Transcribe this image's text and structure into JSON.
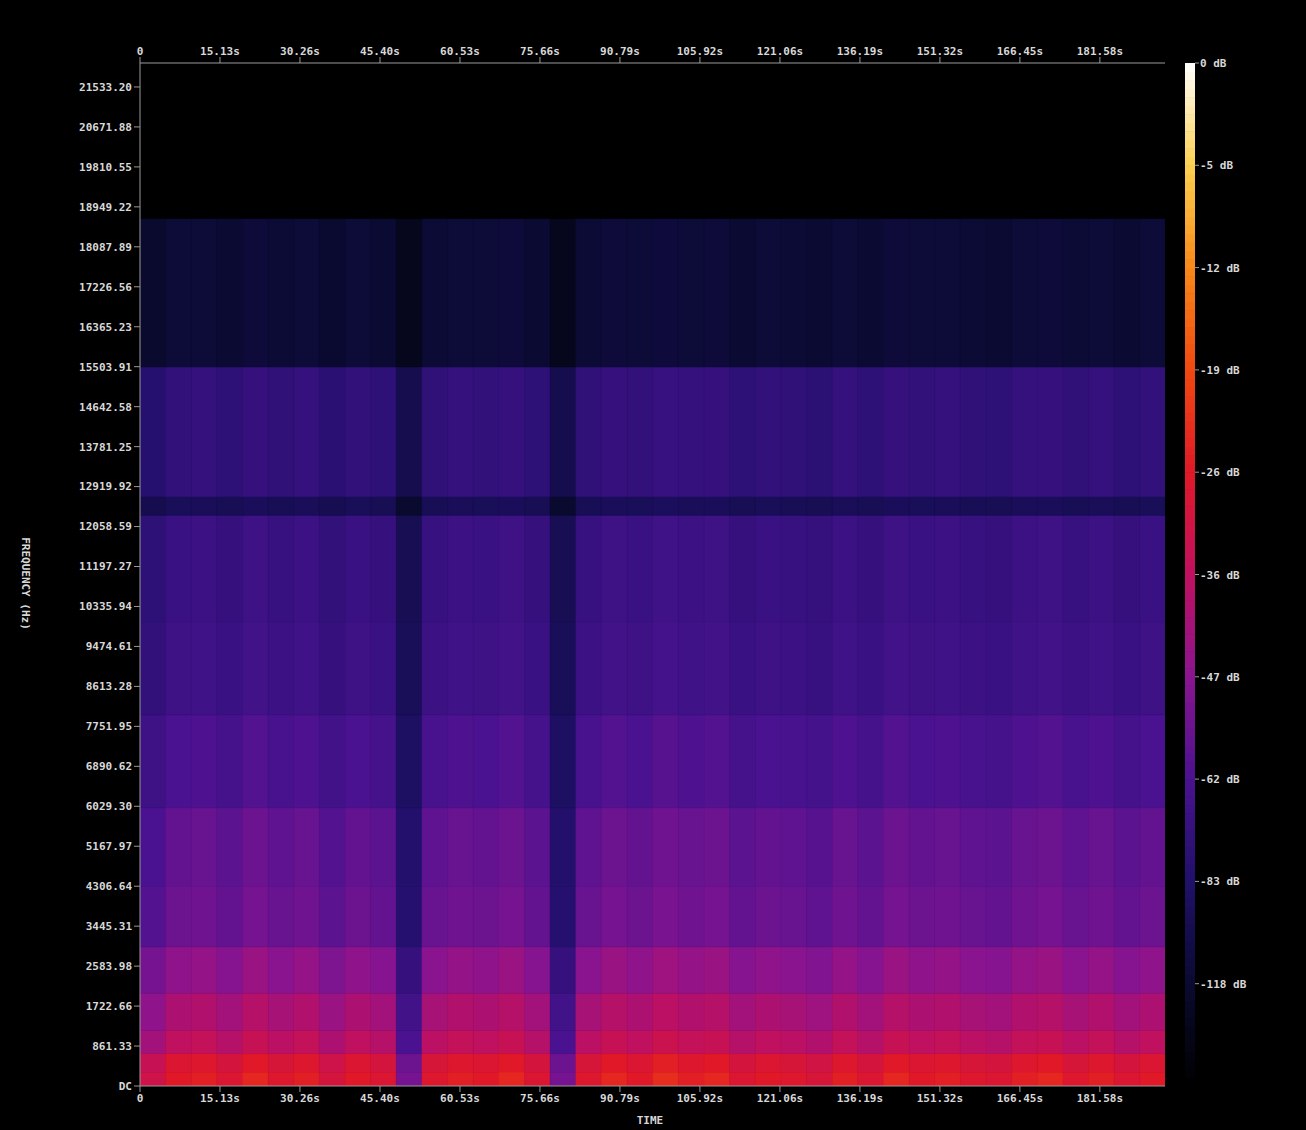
{
  "chart_data": {
    "type": "heatmap",
    "x_label": "TIME",
    "y_label": "FREQUENCY (Hz)",
    "grid": false,
    "xlim": [
      0,
      193.9
    ],
    "xticks": [
      0,
      {
        "value": 15.13,
        "label": "15.13s"
      },
      {
        "value": 30.26,
        "label": "30.26s"
      },
      {
        "value": 45.4,
        "label": "45.40s"
      },
      {
        "value": 60.53,
        "label": "60.53s"
      },
      {
        "value": 75.66,
        "label": "75.66s"
      },
      {
        "value": 90.79,
        "label": "90.79s"
      },
      {
        "value": 105.92,
        "label": "105.92s"
      },
      {
        "value": 121.06,
        "label": "121.06s"
      },
      {
        "value": 136.19,
        "label": "136.19s"
      },
      {
        "value": 151.32,
        "label": "151.32s"
      },
      {
        "value": 166.45,
        "label": "166.45s"
      },
      {
        "value": 181.58,
        "label": "181.58s"
      }
    ],
    "ylim": [
      0,
      22050
    ],
    "yticks": [
      {
        "value": 0,
        "label": "DC"
      },
      861.33,
      1722.66,
      2583.98,
      3445.31,
      4306.64,
      5167.97,
      {
        "value": 6029.3,
        "label": "6029.30"
      },
      6890.62,
      7751.95,
      8613.28,
      9474.61,
      10335.94,
      11197.27,
      12058.59,
      12919.92,
      13781.25,
      14642.58,
      15503.91,
      16365.23,
      17226.56,
      18087.89,
      18949.22,
      19810.55,
      20671.88,
      {
        "value": 21533.2,
        "label": "21533.20"
      }
    ],
    "time_bins": [
      0,
      4.85,
      9.7,
      14.55,
      19.4,
      24.25,
      29.1,
      33.95,
      38.8,
      43.65,
      48.5,
      53.35,
      58.2,
      63.05,
      67.9,
      72.75,
      77.6,
      82.45,
      87.3,
      92.15,
      97,
      101.85,
      106.7,
      111.55,
      116.4,
      121.25,
      126.1,
      130.95,
      135.8,
      140.65,
      145.5,
      150.35,
      155.2,
      160.05,
      164.9,
      169.75,
      174.6,
      179.45,
      184.3,
      189.15,
      193.9
    ],
    "frequency_bins": [
      0,
      300,
      700,
      1200,
      2000,
      3000,
      4300,
      6000,
      8000,
      10000,
      12300,
      12700,
      15500,
      18700,
      22050
    ],
    "cells": [
      [
        -32,
        -26,
        -25,
        -28,
        -24,
        -27,
        -25,
        -30,
        -26,
        -28,
        -52,
        -27,
        -25,
        -26,
        -24,
        -28,
        -52,
        -27,
        -24,
        -26,
        -23,
        -25,
        -24,
        -28,
        -26,
        -27,
        -29,
        -25,
        -28,
        -24,
        -26,
        -25,
        -27,
        -28,
        -25,
        -24,
        -27,
        -25,
        -28,
        -26
      ],
      [
        -34,
        -28,
        -27,
        -30,
        -26,
        -29,
        -27,
        -32,
        -28,
        -30,
        -54,
        -29,
        -27,
        -28,
        -26,
        -30,
        -54,
        -29,
        -26,
        -28,
        -25,
        -27,
        -26,
        -30,
        -28,
        -29,
        -31,
        -27,
        -30,
        -26,
        -28,
        -27,
        -29,
        -30,
        -27,
        -26,
        -29,
        -27,
        -30,
        -28
      ],
      [
        -42,
        -36,
        -35,
        -38,
        -34,
        -37,
        -35,
        -40,
        -36,
        -38,
        -62,
        -37,
        -35,
        -36,
        -34,
        -38,
        -62,
        -37,
        -34,
        -36,
        -33,
        -35,
        -34,
        -38,
        -36,
        -37,
        -39,
        -35,
        -38,
        -34,
        -36,
        -35,
        -37,
        -38,
        -35,
        -34,
        -37,
        -35,
        -38,
        -36
      ],
      [
        -46,
        -40,
        -39,
        -42,
        -38,
        -41,
        -39,
        -44,
        -40,
        -42,
        -66,
        -41,
        -39,
        -40,
        -38,
        -42,
        -66,
        -41,
        -38,
        -40,
        -37,
        -39,
        -38,
        -42,
        -40,
        -41,
        -43,
        -39,
        -42,
        -38,
        -40,
        -39,
        -41,
        -42,
        -39,
        -38,
        -41,
        -39,
        -42,
        -40
      ],
      [
        -52,
        -46,
        -45,
        -48,
        -44,
        -47,
        -45,
        -50,
        -46,
        -48,
        -72,
        -47,
        -45,
        -46,
        -44,
        -48,
        -72,
        -47,
        -44,
        -46,
        -43,
        -45,
        -44,
        -48,
        -46,
        -47,
        -49,
        -45,
        -48,
        -44,
        -46,
        -45,
        -47,
        -48,
        -45,
        -44,
        -47,
        -45,
        -48,
        -46
      ],
      [
        -60,
        -54,
        -53,
        -56,
        -52,
        -55,
        -53,
        -58,
        -54,
        -56,
        -80,
        -55,
        -53,
        -54,
        -52,
        -56,
        -80,
        -55,
        -52,
        -54,
        -51,
        -53,
        -52,
        -56,
        -54,
        -55,
        -57,
        -53,
        -56,
        -52,
        -54,
        -53,
        -55,
        -56,
        -53,
        -52,
        -55,
        -53,
        -56,
        -54
      ],
      [
        -62,
        -56,
        -55,
        -58,
        -54,
        -57,
        -55,
        -60,
        -56,
        -58,
        -82,
        -57,
        -55,
        -56,
        -54,
        -58,
        -82,
        -57,
        -54,
        -56,
        -53,
        -55,
        -54,
        -58,
        -56,
        -57,
        -59,
        -55,
        -58,
        -54,
        -56,
        -55,
        -57,
        -58,
        -55,
        -54,
        -57,
        -55,
        -58,
        -56
      ],
      [
        -68,
        -62,
        -61,
        -64,
        -60,
        -63,
        -61,
        -66,
        -62,
        -64,
        -88,
        -63,
        -61,
        -62,
        -60,
        -64,
        -88,
        -63,
        -60,
        -62,
        -59,
        -61,
        -60,
        -64,
        -62,
        -63,
        -65,
        -61,
        -64,
        -60,
        -62,
        -61,
        -63,
        -64,
        -61,
        -60,
        -63,
        -61,
        -64,
        -62
      ],
      [
        -74,
        -68,
        -67,
        -70,
        -66,
        -69,
        -67,
        -72,
        -68,
        -70,
        -94,
        -69,
        -67,
        -68,
        -66,
        -70,
        -94,
        -69,
        -66,
        -68,
        -65,
        -67,
        -66,
        -70,
        -68,
        -69,
        -71,
        -67,
        -70,
        -66,
        -68,
        -67,
        -69,
        -70,
        -67,
        -66,
        -69,
        -67,
        -70,
        -68
      ],
      [
        -76,
        -70,
        -69,
        -72,
        -68,
        -71,
        -69,
        -74,
        -70,
        -72,
        -96,
        -71,
        -69,
        -70,
        -68,
        -72,
        -96,
        -71,
        -68,
        -70,
        -67,
        -69,
        -68,
        -72,
        -70,
        -71,
        -73,
        -69,
        -72,
        -68,
        -70,
        -69,
        -71,
        -72,
        -69,
        -68,
        -71,
        -69,
        -72,
        -70
      ],
      [
        -100,
        -94,
        -93,
        -96,
        -92,
        -95,
        -93,
        -98,
        -94,
        -96,
        -120,
        -95,
        -93,
        -94,
        -92,
        -96,
        -120,
        -95,
        -92,
        -94,
        -91,
        -93,
        -92,
        -96,
        -94,
        -95,
        -97,
        -93,
        -96,
        -92,
        -94,
        -93,
        -95,
        -96,
        -93,
        -92,
        -95,
        -93,
        -96,
        -94
      ],
      [
        -80,
        -74,
        -73,
        -76,
        -72,
        -75,
        -73,
        -78,
        -74,
        -76,
        -100,
        -75,
        -73,
        -74,
        -72,
        -76,
        -100,
        -75,
        -72,
        -74,
        -71,
        -73,
        -72,
        -76,
        -74,
        -75,
        -77,
        -73,
        -76,
        -72,
        -74,
        -73,
        -75,
        -76,
        -73,
        -72,
        -75,
        -73,
        -76,
        -74
      ],
      [
        -120,
        -114,
        -113,
        -116,
        -112,
        -115,
        -113,
        -118,
        -114,
        -116,
        -140,
        -115,
        -113,
        -114,
        -112,
        -116,
        -140,
        -115,
        -112,
        -114,
        -111,
        -113,
        -112,
        -116,
        -114,
        -115,
        -117,
        -113,
        -116,
        -112,
        -114,
        -113,
        -115,
        -116,
        -113,
        -112,
        -115,
        -113,
        -116,
        -114
      ],
      [
        -170,
        -170,
        -170,
        -170,
        -170,
        -170,
        -170,
        -170,
        -170,
        -170,
        -170,
        -170,
        -170,
        -170,
        -170,
        -170,
        -170,
        -170,
        -170,
        -170,
        -170,
        -170,
        -170,
        -170,
        -170,
        -170,
        -170,
        -170,
        -170,
        -170,
        -170,
        -170,
        -170,
        -170,
        -170,
        -170,
        -170,
        -170,
        -170,
        -170
      ]
    ],
    "colorbar_range": [
      -170,
      0
    ],
    "colorbar_ticks": [
      {
        "value": 0,
        "label": "0 dB"
      },
      {
        "value": -5,
        "label": "-5 dB"
      },
      {
        "value": -12,
        "label": "-12 dB"
      },
      {
        "value": -19,
        "label": "-19 dB"
      },
      {
        "value": -26,
        "label": "-26 dB"
      },
      {
        "value": -36,
        "label": "-36 dB"
      },
      {
        "value": -47,
        "label": "-47 dB"
      },
      {
        "value": -62,
        "label": "-62 dB"
      },
      {
        "value": -83,
        "label": "-83 dB"
      },
      {
        "value": -118,
        "label": "-118 dB"
      }
    ]
  }
}
